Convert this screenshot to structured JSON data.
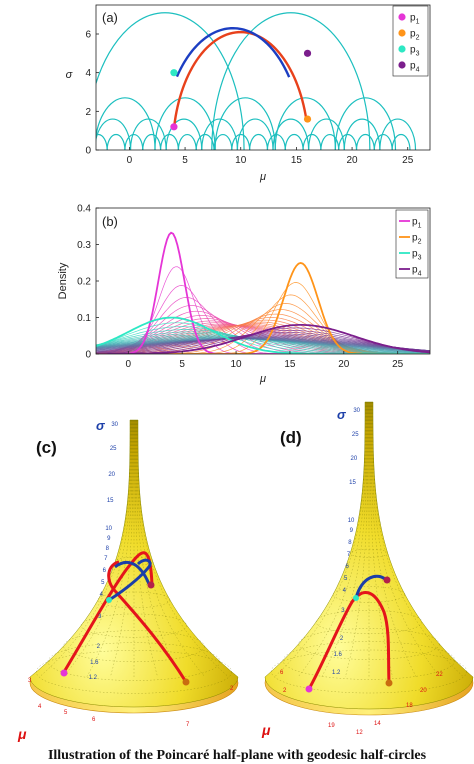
{
  "chart_data": [
    {
      "type": "scatter",
      "panel_label": "(a)",
      "xlabel": "μ",
      "ylabel": "σ",
      "xlim": [
        -3,
        27
      ],
      "ylim": [
        0,
        7.5
      ],
      "xticks": [
        0,
        5,
        10,
        15,
        20,
        25
      ],
      "yticks": [
        0,
        2,
        4,
        6
      ],
      "legend_position": "top-right",
      "points": [
        {
          "name": "p1",
          "sub": "1",
          "mu": 4,
          "sigma": 1.2,
          "color": "#e535d6"
        },
        {
          "name": "p2",
          "sub": "2",
          "mu": 16,
          "sigma": 1.6,
          "color": "#ff9419"
        },
        {
          "name": "p3",
          "sub": "3",
          "mu": 4,
          "sigma": 4,
          "color": "#2de8c4"
        },
        {
          "name": "p4",
          "sub": "4",
          "mu": 16,
          "sigma": 5,
          "color": "#7b1e8c"
        }
      ],
      "geodesics": [
        {
          "from": "p1",
          "to": "p2",
          "center": 10,
          "radius": 6.1,
          "color": "#e8411b"
        },
        {
          "from": "p3",
          "to": "p4",
          "center": 9.3,
          "radius": 6.3,
          "color": "#1c3ec2"
        }
      ],
      "grid_color": "#1cbfbf",
      "grid_arcs_levels": [
        {
          "radius": 0.8,
          "centers": [
            -2.8,
            -1.2,
            0.4,
            2,
            3.6,
            5.2,
            6.8,
            8.4,
            10,
            11.6,
            13.2,
            14.8,
            16.4,
            18,
            19.6,
            21.2,
            22.8,
            24.4
          ]
        },
        {
          "radius": 1.6,
          "centers": [
            -1.5,
            1.7,
            4.9,
            8.1,
            11.3,
            14.5,
            17.7,
            20.9,
            24.1
          ]
        },
        {
          "radius": 2.7,
          "centers": [
            -0.4,
            5,
            10.4,
            15.8,
            21.2
          ]
        },
        {
          "radius": 7.1,
          "centers": [
            3.2,
            14.5
          ]
        }
      ]
    },
    {
      "type": "line",
      "panel_label": "(b)",
      "xlabel": "μ",
      "ylabel": "Density",
      "xlim": [
        -3,
        28
      ],
      "ylim": [
        0,
        0.4
      ],
      "xticks": [
        0,
        5,
        10,
        15,
        20,
        25
      ],
      "yticks": [
        0,
        0.1,
        0.2,
        0.3,
        0.4
      ],
      "ytick_labels": [
        "0",
        "0.1",
        "0.2",
        "0.3",
        "0.4"
      ],
      "legend_position": "top-right",
      "series": [
        {
          "name": "p1",
          "sub": "1",
          "color": "#e535d6",
          "values": "mixture of two normals",
          "mu": 4,
          "sigma": 1.2
        },
        {
          "name": "p2",
          "sub": "2",
          "color": "#ff9419",
          "mu": 16,
          "sigma": 1.6
        },
        {
          "name": "p3",
          "sub": "3",
          "color": "#2de8c4",
          "mu": 4,
          "sigma": 4
        },
        {
          "name": "p4",
          "sub": "4",
          "color": "#7b1e8c",
          "mu": 16,
          "sigma": 5
        }
      ],
      "interpolation_steps": 26
    }
  ],
  "panels_3d": [
    {
      "label": "(c)",
      "axis_sigma": "σ",
      "axis_mu": "μ",
      "sigma_ticks": [
        "30",
        "25",
        "20",
        "15",
        "10",
        "9",
        "8",
        "7",
        "6",
        "5",
        "4",
        "3",
        "2",
        "1.6",
        "1.2"
      ],
      "mu_ticks": [
        "3",
        "4",
        "5",
        "6",
        "7",
        "2"
      ]
    },
    {
      "label": "(d)",
      "axis_sigma": "σ",
      "axis_mu": "μ",
      "sigma_ticks": [
        "30",
        "25",
        "20",
        "15",
        "10",
        "9",
        "8",
        "7",
        "6",
        "5",
        "4",
        "3",
        "2",
        "1.6",
        "1.2"
      ],
      "mu_ticks": [
        "6",
        "2",
        "19",
        "12",
        "14",
        "18",
        "20",
        "22"
      ]
    }
  ],
  "caption": "Illustration of the Poincaré half-plane with geodesic half-circles"
}
